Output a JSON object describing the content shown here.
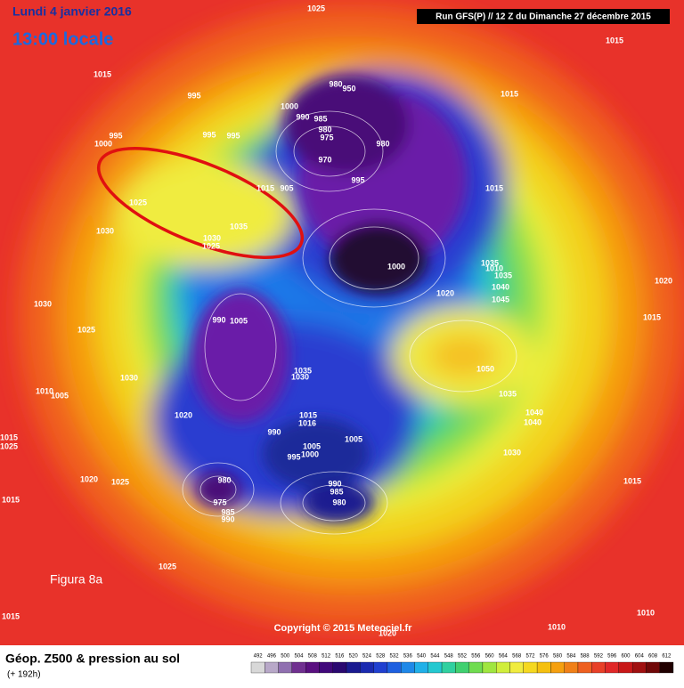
{
  "header": {
    "date": "Lundi 4 janvier 2016",
    "time": "13:00 locale",
    "run": "Run GFS(P) // 12 Z du Dimanche 27 décembre 2015"
  },
  "figure_label": "Figura 8a",
  "copyright": "Copyright © 2015 Meteociel.fr",
  "footer": {
    "title": "Géop. Z500 & pression au sol",
    "subtitle": "(+ 192h)"
  },
  "legend": {
    "ticks": [
      492,
      496,
      500,
      504,
      508,
      512,
      516,
      520,
      524,
      528,
      532,
      536,
      540,
      544,
      548,
      552,
      556,
      560,
      564,
      568,
      572,
      576,
      580,
      584,
      588,
      592,
      596,
      600,
      604,
      608,
      612
    ]
  },
  "pressure_labels": [
    1025,
    1015,
    1015,
    995,
    980,
    950,
    1015,
    1000,
    990,
    985,
    980,
    975,
    980,
    995,
    995,
    995,
    1000,
    970,
    995,
    1015,
    1015,
    905,
    1025,
    1030,
    1035,
    1030,
    1025,
    1000,
    1035,
    1010,
    1035,
    1040,
    1020,
    1045,
    1030,
    1020,
    990,
    1005,
    1015,
    1025,
    1050,
    1035,
    1030,
    1030,
    1010,
    1005,
    1035,
    1040,
    1040,
    1020,
    1015,
    1016,
    1015,
    1025,
    990,
    1005,
    1005,
    995,
    1000,
    1030,
    980,
    990,
    985,
    980,
    975,
    985,
    990,
    1020,
    1025,
    1015,
    1015,
    1025,
    1015,
    1010,
    1010,
    1020
  ]
}
